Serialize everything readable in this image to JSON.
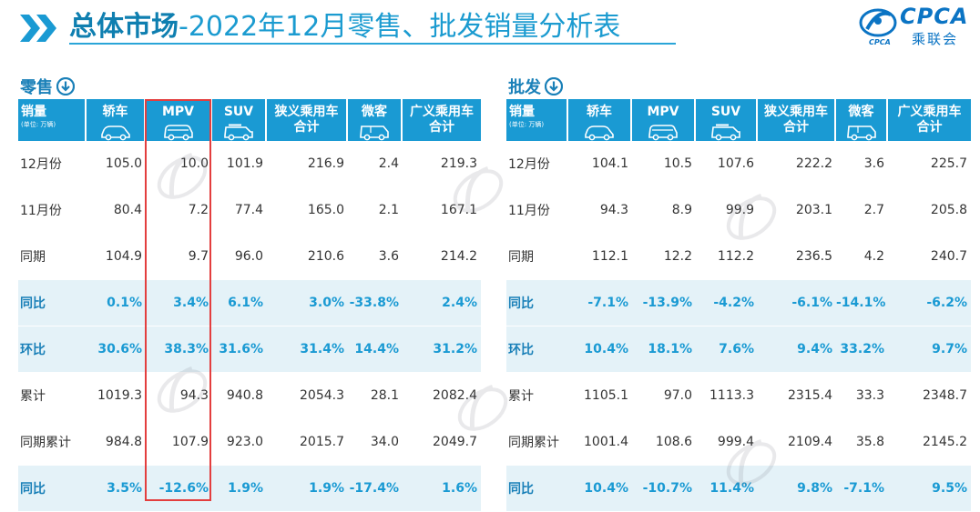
{
  "header": {
    "title_bold": "总体市场",
    "title_rest": "-2022年12月零售、批发销量分析表",
    "logo_text": "CPCA",
    "logo_sub": "乘联会",
    "logo_small": "CPCA"
  },
  "colors": {
    "accent": "#1a9ad3",
    "highlight_box": "#e33e3e",
    "row_tint": "#e4f2f8"
  },
  "retail": {
    "section_label": "零售",
    "header": {
      "first": "销量",
      "unit": "(单位: 万辆)",
      "cols": [
        {
          "line1": "轿车",
          "line2": "",
          "icon": "sedan-icon"
        },
        {
          "line1": "MPV",
          "line2": "",
          "icon": "mpv-icon"
        },
        {
          "line1": "SUV",
          "line2": "",
          "icon": "suv-icon"
        },
        {
          "line1": "狭义乘用车",
          "line2": "合计",
          "icon": ""
        },
        {
          "line1": "微客",
          "line2": "",
          "icon": "van-icon"
        },
        {
          "line1": "广义乘用车",
          "line2": "合计",
          "icon": ""
        }
      ]
    },
    "rows": [
      {
        "label": "12月份",
        "values": [
          "105.0",
          "10.0",
          "101.9",
          "216.9",
          "2.4",
          "219.3"
        ]
      },
      {
        "label": "11月份",
        "values": [
          "80.4",
          "7.2",
          "77.4",
          "165.0",
          "2.1",
          "167.1"
        ]
      },
      {
        "label": "同期",
        "values": [
          "104.9",
          "9.7",
          "96.0",
          "210.6",
          "3.6",
          "214.2"
        ]
      },
      {
        "label": "同比",
        "values": [
          "0.1%",
          "3.4%",
          "6.1%",
          "3.0%",
          "-33.8%",
          "2.4%"
        ]
      },
      {
        "label": "环比",
        "values": [
          "30.6%",
          "38.3%",
          "31.6%",
          "31.4%",
          "14.4%",
          "31.2%"
        ]
      },
      {
        "label": "累计",
        "values": [
          "1019.3",
          "94.3",
          "940.8",
          "2054.3",
          "28.1",
          "2082.4"
        ]
      },
      {
        "label": "同期累计",
        "values": [
          "984.8",
          "107.9",
          "923.0",
          "2015.7",
          "34.0",
          "2049.7"
        ]
      },
      {
        "label": "同比",
        "values": [
          "3.5%",
          "-12.6%",
          "1.9%",
          "1.9%",
          "-17.4%",
          "1.6%"
        ]
      }
    ]
  },
  "wholesale": {
    "section_label": "批发",
    "header": {
      "first": "销量",
      "unit": "(单位: 万辆)",
      "cols": [
        {
          "line1": "轿车",
          "line2": "",
          "icon": "sedan-icon"
        },
        {
          "line1": "MPV",
          "line2": "",
          "icon": "mpv-icon"
        },
        {
          "line1": "SUV",
          "line2": "",
          "icon": "suv-icon"
        },
        {
          "line1": "狭义乘用车",
          "line2": "合计",
          "icon": ""
        },
        {
          "line1": "微客",
          "line2": "",
          "icon": "van-icon"
        },
        {
          "line1": "广义乘用车",
          "line2": "合计",
          "icon": ""
        }
      ]
    },
    "rows": [
      {
        "label": "12月份",
        "values": [
          "104.1",
          "10.5",
          "107.6",
          "222.2",
          "3.6",
          "225.7"
        ]
      },
      {
        "label": "11月份",
        "values": [
          "94.3",
          "8.9",
          "99.9",
          "203.1",
          "2.7",
          "205.8"
        ]
      },
      {
        "label": "同期",
        "values": [
          "112.1",
          "12.2",
          "112.2",
          "236.5",
          "4.2",
          "240.7"
        ]
      },
      {
        "label": "同比",
        "values": [
          "-7.1%",
          "-13.9%",
          "-4.2%",
          "-6.1%",
          "-14.1%",
          "-6.2%"
        ]
      },
      {
        "label": "环比",
        "values": [
          "10.4%",
          "18.1%",
          "7.6%",
          "9.4%",
          "33.2%",
          "9.7%"
        ]
      },
      {
        "label": "累计",
        "values": [
          "1105.1",
          "97.0",
          "1113.3",
          "2315.4",
          "33.3",
          "2348.7"
        ]
      },
      {
        "label": "同期累计",
        "values": [
          "1001.4",
          "108.6",
          "999.4",
          "2109.4",
          "35.8",
          "2145.2"
        ]
      },
      {
        "label": "同比",
        "values": [
          "10.4%",
          "-10.7%",
          "11.4%",
          "9.8%",
          "-7.1%",
          "9.5%"
        ]
      }
    ]
  }
}
